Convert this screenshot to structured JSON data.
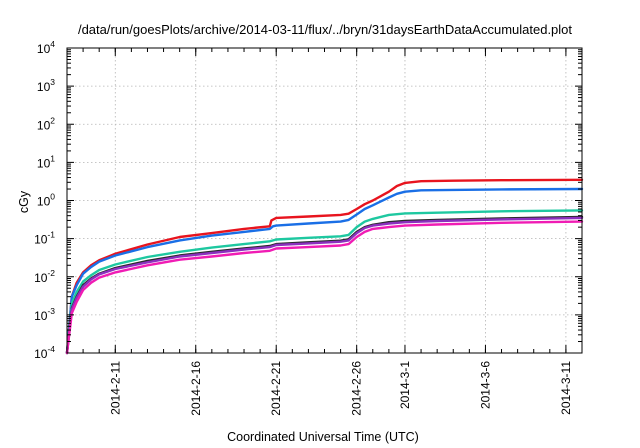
{
  "chart_data": {
    "type": "line",
    "title": "/data/run/goesPlots/archive/2014-03-11/flux/../bryn/31daysEarthDataAccumulated.plot",
    "xlabel": "Coordinated Universal Time (UTC)",
    "ylabel": "cGy",
    "y_scale": "log",
    "ylim": [
      0.0001,
      10000
    ],
    "y_ticks": [
      {
        "value": 0.0001,
        "base": "10",
        "exp": "-4"
      },
      {
        "value": 0.001,
        "base": "10",
        "exp": "-3"
      },
      {
        "value": 0.01,
        "base": "10",
        "exp": "-2"
      },
      {
        "value": 0.1,
        "base": "10",
        "exp": "-1"
      },
      {
        "value": 1,
        "base": "10",
        "exp": "0"
      },
      {
        "value": 10,
        "base": "10",
        "exp": "1"
      },
      {
        "value": 100,
        "base": "10",
        "exp": "2"
      },
      {
        "value": 1000,
        "base": "10",
        "exp": "3"
      },
      {
        "value": 10000,
        "base": "10",
        "exp": "4"
      }
    ],
    "x_unit": "day of 2014 (Feb 1 = day 1)",
    "xlim": [
      39,
      71
    ],
    "x_ticks": [
      {
        "value": 42,
        "label": "2014-2-11"
      },
      {
        "value": 47,
        "label": "2014-2-16"
      },
      {
        "value": 52,
        "label": "2014-2-21"
      },
      {
        "value": 57,
        "label": "2014-2-26"
      },
      {
        "value": 60,
        "label": "2014-3-1"
      },
      {
        "value": 65,
        "label": "2014-3-6"
      },
      {
        "value": 70,
        "label": "2014-3-11"
      }
    ],
    "grid": true,
    "legend": "none",
    "series": [
      {
        "color": "#e8141e",
        "points": [
          [
            39,
            0.0001
          ],
          [
            39.3,
            0.003
          ],
          [
            39.6,
            0.007
          ],
          [
            40,
            0.013
          ],
          [
            40.5,
            0.02
          ],
          [
            41,
            0.027
          ],
          [
            42,
            0.04
          ],
          [
            44,
            0.07
          ],
          [
            46,
            0.11
          ],
          [
            48,
            0.14
          ],
          [
            50,
            0.18
          ],
          [
            51.6,
            0.21
          ],
          [
            51.7,
            0.3
          ],
          [
            52,
            0.35
          ],
          [
            54,
            0.38
          ],
          [
            56,
            0.42
          ],
          [
            56.5,
            0.45
          ],
          [
            57,
            0.6
          ],
          [
            57.5,
            0.8
          ],
          [
            58,
            1.0
          ],
          [
            59,
            1.7
          ],
          [
            59.5,
            2.4
          ],
          [
            60,
            2.9
          ],
          [
            61,
            3.2
          ],
          [
            63,
            3.3
          ],
          [
            66,
            3.4
          ],
          [
            71,
            3.5
          ]
        ]
      },
      {
        "color": "#1a6fe6",
        "points": [
          [
            39,
            0.0001
          ],
          [
            39.3,
            0.003
          ],
          [
            39.6,
            0.006
          ],
          [
            40,
            0.012
          ],
          [
            40.5,
            0.018
          ],
          [
            41,
            0.025
          ],
          [
            42,
            0.036
          ],
          [
            44,
            0.06
          ],
          [
            46,
            0.09
          ],
          [
            48,
            0.12
          ],
          [
            50,
            0.15
          ],
          [
            51.6,
            0.18
          ],
          [
            51.8,
            0.21
          ],
          [
            52,
            0.22
          ],
          [
            54,
            0.25
          ],
          [
            56,
            0.28
          ],
          [
            56.5,
            0.31
          ],
          [
            57,
            0.43
          ],
          [
            57.5,
            0.6
          ],
          [
            58,
            0.75
          ],
          [
            59,
            1.2
          ],
          [
            59.5,
            1.5
          ],
          [
            60,
            1.7
          ],
          [
            61,
            1.85
          ],
          [
            63,
            1.9
          ],
          [
            66,
            1.95
          ],
          [
            71,
            2.0
          ]
        ]
      },
      {
        "color": "#1ec8a0",
        "points": [
          [
            39,
            0.0001
          ],
          [
            39.3,
            0.002
          ],
          [
            39.6,
            0.004
          ],
          [
            40,
            0.0075
          ],
          [
            40.5,
            0.011
          ],
          [
            41,
            0.015
          ],
          [
            42,
            0.021
          ],
          [
            44,
            0.033
          ],
          [
            46,
            0.045
          ],
          [
            48,
            0.058
          ],
          [
            50,
            0.072
          ],
          [
            51.6,
            0.085
          ],
          [
            52,
            0.095
          ],
          [
            54,
            0.105
          ],
          [
            56,
            0.115
          ],
          [
            56.5,
            0.125
          ],
          [
            57,
            0.2
          ],
          [
            57.5,
            0.28
          ],
          [
            58,
            0.33
          ],
          [
            59,
            0.42
          ],
          [
            60,
            0.46
          ],
          [
            62,
            0.48
          ],
          [
            66,
            0.52
          ],
          [
            71,
            0.55
          ]
        ]
      },
      {
        "color": "#2a2a2a",
        "points": [
          [
            39,
            0.0001
          ],
          [
            39.3,
            0.0015
          ],
          [
            39.6,
            0.003
          ],
          [
            40,
            0.006
          ],
          [
            40.5,
            0.009
          ],
          [
            41,
            0.012
          ],
          [
            42,
            0.017
          ],
          [
            44,
            0.026
          ],
          [
            46,
            0.036
          ],
          [
            48,
            0.045
          ],
          [
            50,
            0.055
          ],
          [
            51.6,
            0.064
          ],
          [
            52,
            0.072
          ],
          [
            54,
            0.08
          ],
          [
            56,
            0.088
          ],
          [
            56.5,
            0.096
          ],
          [
            57,
            0.15
          ],
          [
            57.5,
            0.2
          ],
          [
            58,
            0.23
          ],
          [
            59,
            0.27
          ],
          [
            60,
            0.29
          ],
          [
            62,
            0.31
          ],
          [
            66,
            0.34
          ],
          [
            71,
            0.37
          ]
        ]
      },
      {
        "color": "#8c2fbf",
        "points": [
          [
            39,
            0.0001
          ],
          [
            39.3,
            0.0014
          ],
          [
            39.6,
            0.0028
          ],
          [
            40,
            0.0055
          ],
          [
            40.5,
            0.0085
          ],
          [
            41,
            0.0115
          ],
          [
            42,
            0.016
          ],
          [
            44,
            0.024
          ],
          [
            46,
            0.034
          ],
          [
            48,
            0.042
          ],
          [
            50,
            0.052
          ],
          [
            51.6,
            0.06
          ],
          [
            52,
            0.068
          ],
          [
            54,
            0.075
          ],
          [
            56,
            0.083
          ],
          [
            56.5,
            0.09
          ],
          [
            57,
            0.14
          ],
          [
            57.5,
            0.19
          ],
          [
            58,
            0.22
          ],
          [
            59,
            0.25
          ],
          [
            60,
            0.27
          ],
          [
            62,
            0.29
          ],
          [
            66,
            0.32
          ],
          [
            71,
            0.35
          ]
        ]
      },
      {
        "color": "#f01cb4",
        "points": [
          [
            39,
            0.0001
          ],
          [
            39.3,
            0.0011
          ],
          [
            39.6,
            0.0022
          ],
          [
            40,
            0.0045
          ],
          [
            40.5,
            0.007
          ],
          [
            41,
            0.0095
          ],
          [
            42,
            0.013
          ],
          [
            44,
            0.02
          ],
          [
            46,
            0.028
          ],
          [
            48,
            0.034
          ],
          [
            50,
            0.042
          ],
          [
            51.6,
            0.048
          ],
          [
            52,
            0.055
          ],
          [
            54,
            0.06
          ],
          [
            56,
            0.066
          ],
          [
            56.5,
            0.072
          ],
          [
            57,
            0.11
          ],
          [
            57.5,
            0.15
          ],
          [
            58,
            0.18
          ],
          [
            59,
            0.2
          ],
          [
            60,
            0.22
          ],
          [
            62,
            0.235
          ],
          [
            66,
            0.26
          ],
          [
            71,
            0.28
          ]
        ]
      }
    ]
  }
}
